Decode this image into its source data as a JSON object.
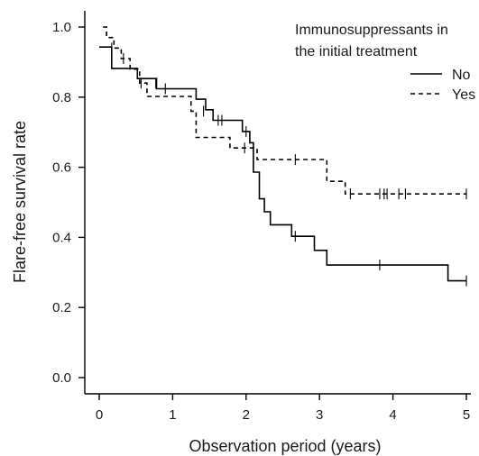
{
  "chart_data": {
    "type": "line",
    "subtype": "kaplan-meier step",
    "xlabel": "Observation period (years)",
    "ylabel": "Flare-free survival rate",
    "xlim": [
      0,
      5
    ],
    "ylim": [
      0,
      1
    ],
    "xticks": [
      "0",
      "1",
      "2",
      "3",
      "4",
      "5"
    ],
    "yticks": [
      "0.0",
      "0.2",
      "0.4",
      "0.6",
      "0.8",
      "1.0"
    ],
    "grid": false,
    "legend": {
      "title_lines": [
        "Immunosuppressants in",
        "the initial treatment"
      ],
      "placement": "top-right",
      "entries": [
        {
          "label": "No",
          "style": "solid"
        },
        {
          "label": "Yes",
          "style": "dashed"
        }
      ]
    },
    "series": [
      {
        "name": "No",
        "style": "solid",
        "color": "#000000",
        "steps": [
          [
            0.0,
            0.943
          ],
          [
            0.17,
            0.882
          ],
          [
            0.52,
            0.853
          ],
          [
            0.78,
            0.824
          ],
          [
            1.32,
            0.794
          ],
          [
            1.45,
            0.764
          ],
          [
            1.55,
            0.734
          ],
          [
            1.95,
            0.702
          ],
          [
            2.05,
            0.67
          ],
          [
            2.1,
            0.586
          ],
          [
            2.18,
            0.51
          ],
          [
            2.25,
            0.473
          ],
          [
            2.33,
            0.436
          ],
          [
            2.62,
            0.403
          ],
          [
            2.93,
            0.363
          ],
          [
            3.1,
            0.321
          ],
          [
            4.75,
            0.276
          ],
          [
            5.0,
            0.276
          ]
        ],
        "censored": [
          [
            0.9,
            0.824
          ],
          [
            1.62,
            0.734
          ],
          [
            1.67,
            0.734
          ],
          [
            2.0,
            0.702
          ],
          [
            2.67,
            0.403
          ],
          [
            3.82,
            0.321
          ],
          [
            5.0,
            0.276
          ]
        ]
      },
      {
        "name": "Yes",
        "style": "dashed",
        "color": "#000000",
        "steps": [
          [
            0.05,
            1.0
          ],
          [
            0.1,
            0.97
          ],
          [
            0.2,
            0.94
          ],
          [
            0.3,
            0.91
          ],
          [
            0.42,
            0.88
          ],
          [
            0.55,
            0.84
          ],
          [
            0.65,
            0.802
          ],
          [
            1.25,
            0.76
          ],
          [
            1.32,
            0.685
          ],
          [
            1.78,
            0.655
          ],
          [
            2.15,
            0.622
          ],
          [
            3.1,
            0.56
          ],
          [
            3.35,
            0.524
          ],
          [
            5.0,
            0.524
          ]
        ],
        "censored": [
          [
            0.17,
            0.94
          ],
          [
            0.33,
            0.91
          ],
          [
            0.57,
            0.84
          ],
          [
            0.77,
            0.84
          ],
          [
            1.42,
            0.76
          ],
          [
            1.98,
            0.655
          ],
          [
            2.67,
            0.622
          ],
          [
            3.42,
            0.524
          ],
          [
            3.82,
            0.524
          ],
          [
            3.88,
            0.524
          ],
          [
            3.92,
            0.524
          ],
          [
            4.08,
            0.524
          ],
          [
            4.17,
            0.524
          ],
          [
            5.0,
            0.524
          ]
        ]
      }
    ]
  }
}
